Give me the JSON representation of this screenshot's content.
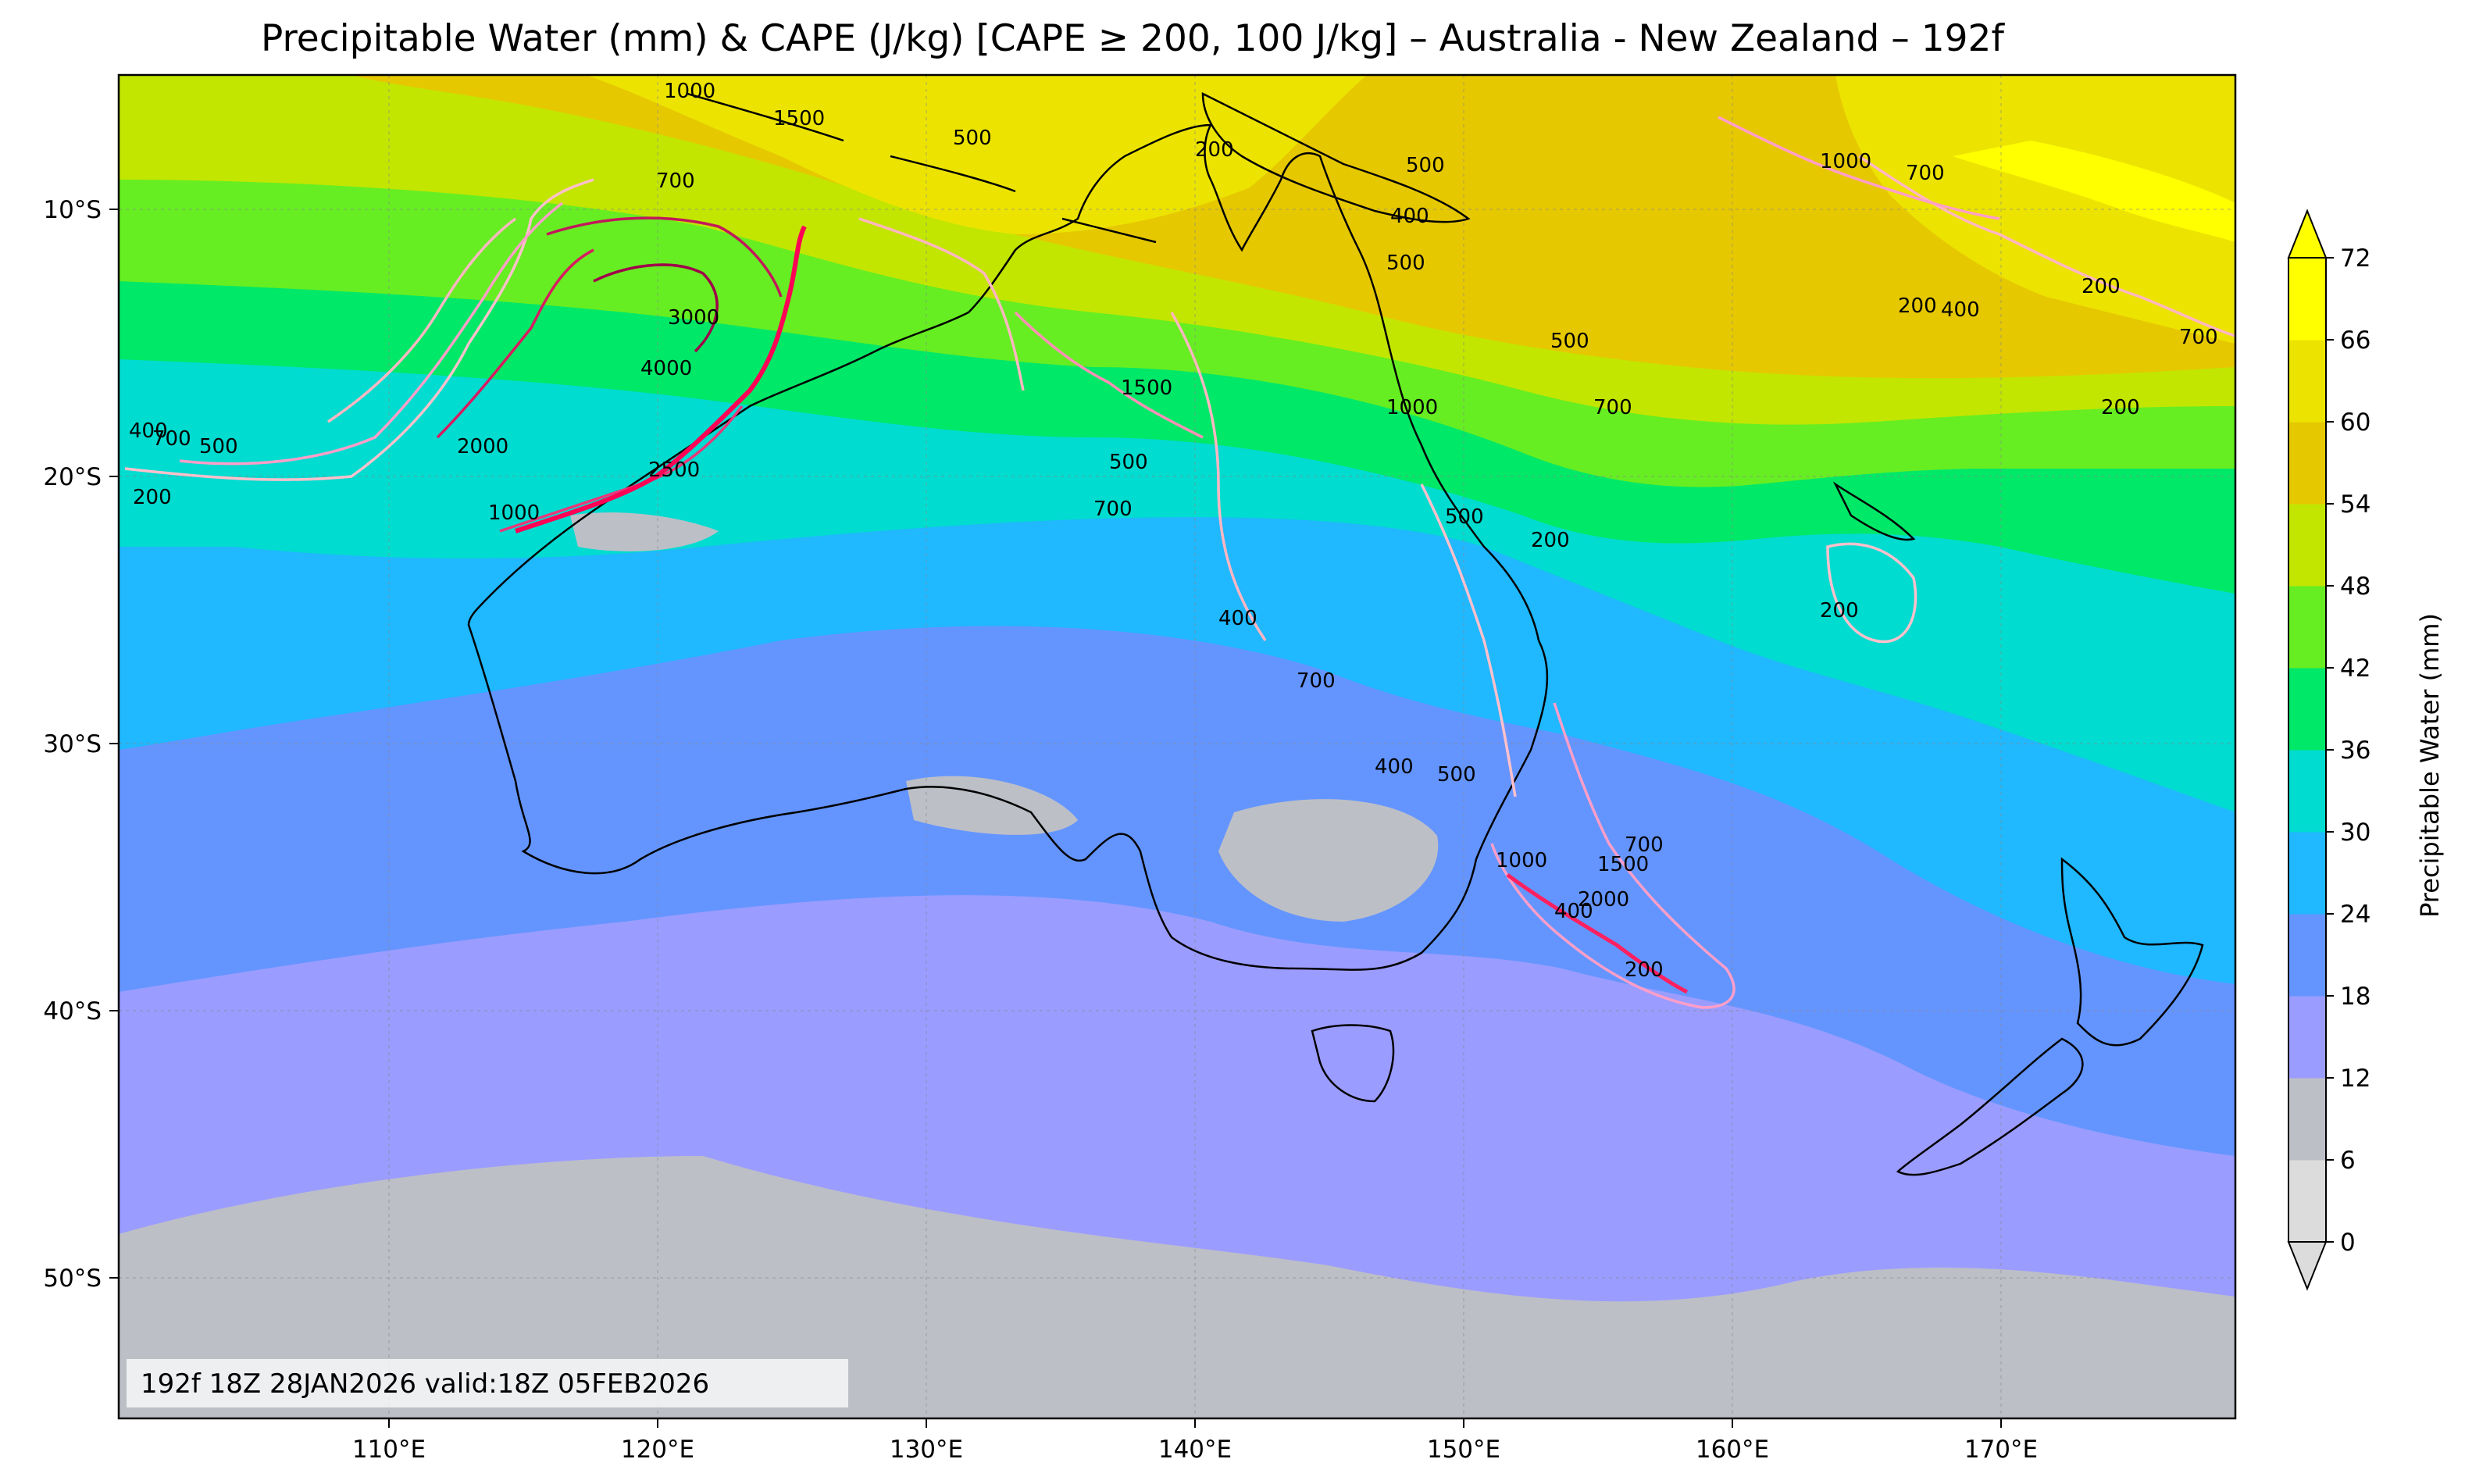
{
  "title": "Precipitable Water (mm) & CAPE (J/kg) [CAPE ≥ 200, 100 J/kg] – Australia - New Zealand – 192f",
  "valid_time": "192f 18Z 28JAN2026 valid:18Z 05FEB2026",
  "lat_ticks": [
    "10°S",
    "20°S",
    "30°S",
    "40°S",
    "50°S"
  ],
  "lon_ticks": [
    "110°E",
    "120°E",
    "130°E",
    "140°E",
    "150°E",
    "160°E",
    "170°E"
  ],
  "colorbar": {
    "label": "Precipitable Water (mm)",
    "levels": [
      "0",
      "6",
      "12",
      "18",
      "24",
      "30",
      "36",
      "42",
      "48",
      "54",
      "60",
      "66",
      "72"
    ],
    "colors": [
      "#dcdcdc",
      "#bdbfc7",
      "#9b9cff",
      "#6495ff",
      "#20b8ff",
      "#00dcd0",
      "#00e868",
      "#66ee22",
      "#c2e600",
      "#e6c800",
      "#ece400",
      "#ffff00"
    ]
  },
  "contour_labels": [
    "200",
    "400",
    "500",
    "700",
    "1000",
    "1500",
    "2000",
    "2500",
    "3000",
    "4000"
  ]
}
